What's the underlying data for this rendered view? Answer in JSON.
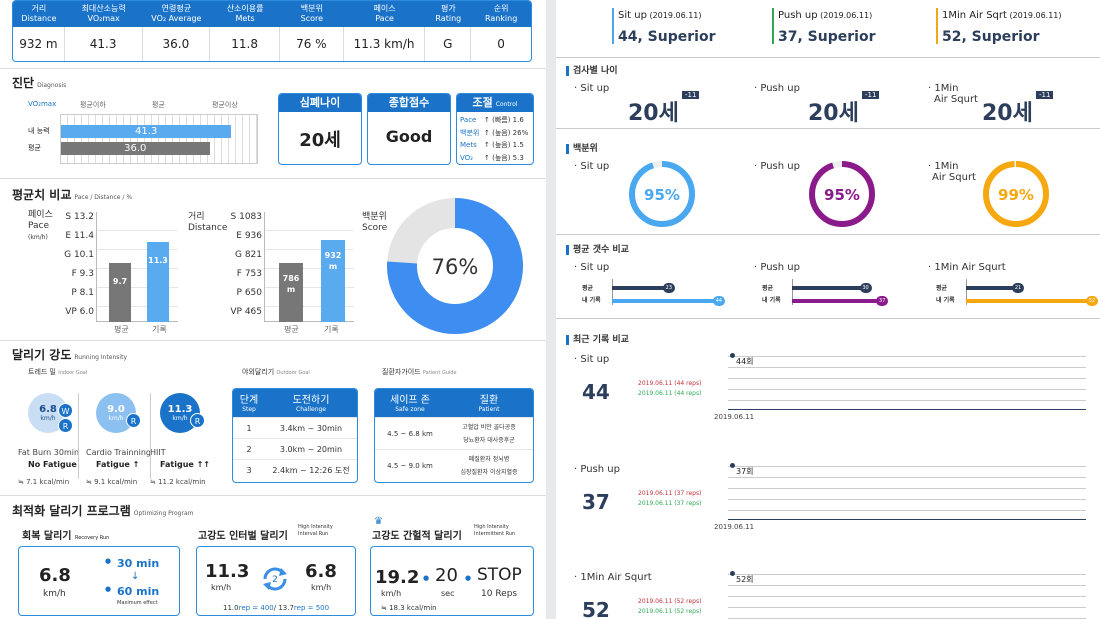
{
  "stats": {
    "headers": [
      {
        "ko": "거리",
        "en": "Distance"
      },
      {
        "ko": "최대산소능력",
        "en": "VO₂max"
      },
      {
        "ko": "연령평균",
        "en": "VO₂ Average"
      },
      {
        "ko": "산소이용률",
        "en": "Mets"
      },
      {
        "ko": "백분위",
        "en": "Score"
      },
      {
        "ko": "페이스",
        "en": "Pace"
      },
      {
        "ko": "평가",
        "en": "Rating"
      },
      {
        "ko": "순위",
        "en": "Ranking"
      }
    ],
    "values": [
      "932 m",
      "41.3",
      "36.0",
      "11.8",
      "76 %",
      "11.3 km/h",
      "G",
      "0"
    ]
  },
  "diagnosis": {
    "title": "진단",
    "title_en": "Diagnosis",
    "vo2_label": "VO₂max",
    "scale_labels": [
      "평균이하",
      "평균",
      "평균이상"
    ],
    "rows": [
      {
        "label": "내 능력",
        "value": 41.3,
        "display": "41.3",
        "color": "#5aaaf0"
      },
      {
        "label": "평균",
        "value": 36.0,
        "display": "36.0",
        "color": "#777777"
      }
    ],
    "cards": [
      {
        "title": "심폐나이",
        "value": "20세"
      },
      {
        "title": "종합점수",
        "value": "Good"
      }
    ],
    "control": {
      "title": "조절",
      "title_en": "Control",
      "rows": [
        {
          "k": "Pace",
          "arrow": "↑",
          "txt": "(빠름) 1.6"
        },
        {
          "k": "백분위",
          "arrow": "↑",
          "txt": "(높음) 26%"
        },
        {
          "k": "Mets",
          "arrow": "↑",
          "txt": "(높음) 1.5"
        },
        {
          "k": "VO₂",
          "arrow": "↑",
          "txt": "(높음) 5.3"
        }
      ]
    }
  },
  "avg_compare": {
    "title": "평균치 비교",
    "subtitle": "Pace / Distance / %",
    "pace": {
      "label1": "페이스",
      "label2": "Pace",
      "unit": "(km/h)",
      "ticks": [
        {
          "g": "S",
          "v": "13.2"
        },
        {
          "g": "E",
          "v": "11.4"
        },
        {
          "g": "G",
          "v": "10.1"
        },
        {
          "g": "F",
          "v": "9.3"
        },
        {
          "g": "P",
          "v": "8.1"
        },
        {
          "g": "VP",
          "v": "6.0"
        }
      ],
      "avg_label": "9.7",
      "mine_label": "11.3",
      "avg_value": 9.7,
      "mine_value": 11.3,
      "x": [
        "평균",
        "기록"
      ]
    },
    "distance": {
      "label1": "거리",
      "label2": "Distance",
      "ticks": [
        {
          "g": "S",
          "v": "1083"
        },
        {
          "g": "E",
          "v": "936"
        },
        {
          "g": "G",
          "v": "821"
        },
        {
          "g": "F",
          "v": "753"
        },
        {
          "g": "P",
          "v": "650"
        },
        {
          "g": "VP",
          "v": "465"
        }
      ],
      "avg_label": "786",
      "mine_label": "932",
      "unit": "m",
      "avg_value": 786,
      "mine_value": 932,
      "x": [
        "평균",
        "기록"
      ]
    },
    "score": {
      "label1": "백분위",
      "label2": "Score",
      "percent": 76,
      "display": "76%"
    }
  },
  "intensity": {
    "title": "달리기 강도",
    "title_en": "Running Intensity",
    "groups": [
      "트레드 밀",
      "야외달리기",
      "질환자가이드"
    ],
    "groups_en": [
      "Indoor Goal",
      "Outdoor Goal",
      "Patient Guide"
    ],
    "circles": [
      {
        "speed": "6.8",
        "unit": "km/h",
        "name": "Fat Burn 30min",
        "state": "No Fatigue",
        "arrow": "",
        "kcal": "≒ 7.1 kcal/min",
        "badges": [
          "W",
          "R"
        ]
      },
      {
        "speed": "9.0",
        "unit": "km/h",
        "name": "Cardio Trainning",
        "state": "Fatigue",
        "arrow": "↑",
        "kcal": "≒ 9.1 kcal/min",
        "badges": [
          "R"
        ]
      },
      {
        "speed": "11.3",
        "unit": "km/h",
        "name": "HIIT",
        "state": "Fatigue",
        "arrow": "↑↑",
        "kcal": "≒ 11.2 kcal/min",
        "badges": [
          "R"
        ]
      }
    ],
    "challenge": {
      "h1": "단계",
      "h1en": "Step",
      "h2": "도전하기",
      "h2en": "Challenge",
      "rows": [
        {
          "step": "1",
          "txt": "3.4km ~ 30min"
        },
        {
          "step": "2",
          "txt": "3.0km ~ 20min"
        },
        {
          "step": "3",
          "txt": "2.4km ~ 12:26 도전"
        }
      ]
    },
    "patient": {
      "h1": "세이프 존",
      "h1en": "Safe zone",
      "h2": "질환",
      "h2en": "Patient",
      "rows": [
        {
          "zone": "4.5 ~ 6.8 km",
          "items": [
            "고혈압 비만 골다공증",
            "당뇨환자 대사증후군"
          ]
        },
        {
          "zone": "4.5 ~ 9.0 km",
          "items": [
            "폐질환자 정뇌병",
            "심장질환자 이상지혈증"
          ]
        }
      ]
    }
  },
  "program": {
    "title": "최적화 달리기 프로그램",
    "title_en": "Optimizing Program",
    "recovery": {
      "title": "회복 달리기",
      "title_en": "Recovery Run",
      "speed": "6.8",
      "unit": "km/h",
      "t1": "30 min",
      "arrow": "↓",
      "t2": "60 min",
      "note": "Maximum effect"
    },
    "interval": {
      "title": "고강도 인터벌 달리기",
      "title_en1": "High Intensity",
      "title_en2": "Interval Run",
      "s1": "11.3",
      "s2": "6.8",
      "unit": "km/h",
      "reps": "2",
      "footer_a": "11.0",
      "footer_b": "rep = 400",
      "footer_c": "/ 13.7",
      "footer_d": "rep = 500"
    },
    "hiit": {
      "title": "고강도 간헐적 달리기",
      "title_en1": "High Intensity",
      "title_en2": "Intermittent Run",
      "speed": "19.2",
      "unit": "km/h",
      "sec": "20",
      "sec_unit": "sec",
      "stop": "STOP",
      "reps": "10 Reps",
      "kcal": "≒ 18.3 kcal/min"
    }
  },
  "right": {
    "top": [
      {
        "name": "Sit up",
        "date": "(2019.06.11)",
        "result": "44, Superior",
        "color": "#4aa8f0"
      },
      {
        "name": "Push up",
        "date": "(2019.06.11)",
        "result": "37, Superior",
        "color": "#2eaa55"
      },
      {
        "name": "1Min Air Sqrt",
        "date": "(2019.06.11)",
        "result": "52, Superior",
        "color": "#f0a818"
      }
    ],
    "age": {
      "title": "검사별 나이",
      "items": [
        {
          "name": "Sit up",
          "name2": "",
          "value": "20세",
          "tag": "-11"
        },
        {
          "name": "Push up",
          "name2": "",
          "value": "20세",
          "tag": "-11"
        },
        {
          "name": "1Min",
          "name2": "Air Squrt",
          "value": "20세",
          "tag": "-11"
        }
      ]
    },
    "percentile": {
      "title": "백분위",
      "items": [
        {
          "name": "Sit up",
          "name2": "",
          "value": "95%",
          "percent": 95,
          "color": "#4aa8f0"
        },
        {
          "name": "Push up",
          "name2": "",
          "value": "95%",
          "percent": 95,
          "color": "#8b1a8b"
        },
        {
          "name": "1Min",
          "name2": "Air Squrt",
          "value": "99%",
          "percent": 99,
          "color": "#f5a810"
        }
      ]
    },
    "avgcount": {
      "title": "평균 갯수 비교",
      "labels": [
        "평균",
        "내 기록"
      ],
      "items": [
        {
          "name": "Sit up",
          "avg": 23,
          "mine": 44,
          "color": "#4aa8f0"
        },
        {
          "name": "Push up",
          "avg": 30,
          "mine": 37,
          "color": "#8b1a8b"
        },
        {
          "name": "1Min Air Squrt",
          "avg": 21,
          "mine": 52,
          "color": "#f5a810"
        }
      ]
    },
    "recent": {
      "title": "최근 기록 비교",
      "items": [
        {
          "name": "Sit up",
          "value": "44",
          "pt": "44회",
          "r1": "2019.06.11 (44 reps)",
          "r2": "2019.06.11 (44 reps)",
          "date": "2019.06.11"
        },
        {
          "name": "Push up",
          "value": "37",
          "pt": "37회",
          "r1": "2019.06.11 (37 reps)",
          "r2": "2019.06.11 (37 reps)",
          "date": "2019.06.11"
        },
        {
          "name": "1Min Air Squrt",
          "value": "52",
          "pt": "52회",
          "r1": "2019.06.11 (52 reps)",
          "r2": "2019.06.11 (52 reps)",
          "date": ""
        }
      ]
    }
  }
}
